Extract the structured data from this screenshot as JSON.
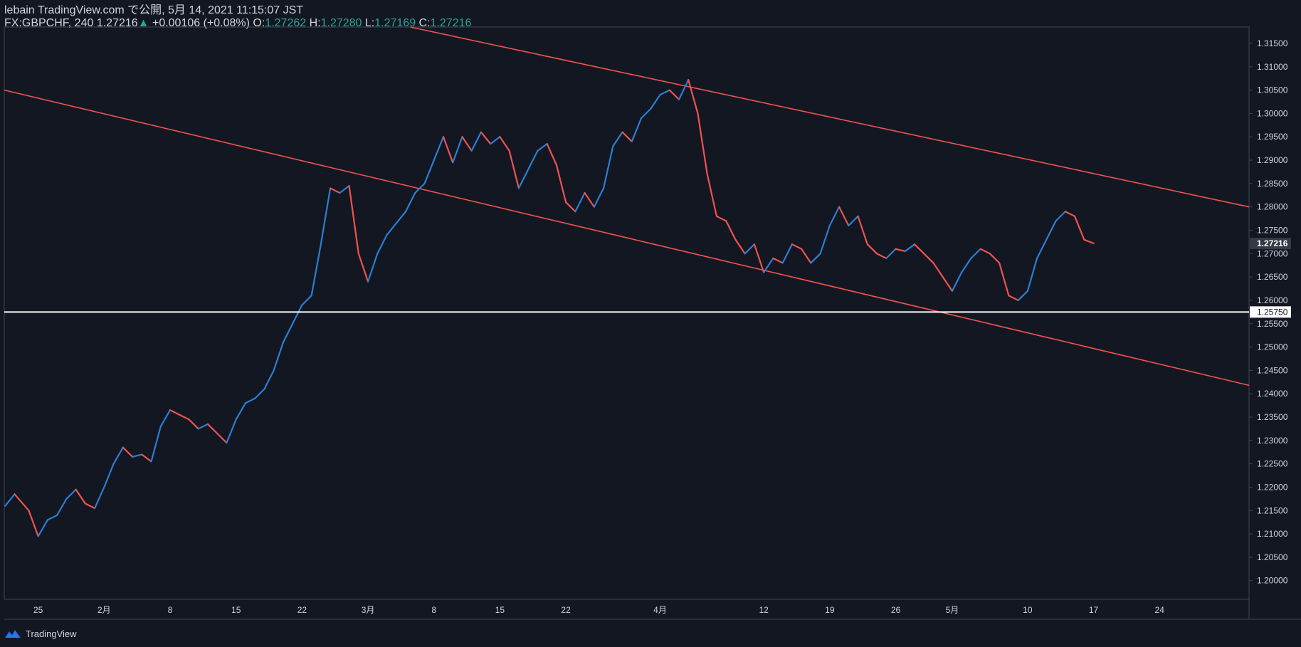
{
  "header": {
    "line1": "lebain TradingView.com で公開, 5月 14, 2021 11:15:07 JST",
    "symbol": "FX:GBPCHF, 240",
    "last": "1.27216",
    "change": "+0.00106 (+0.08%)",
    "o_label": "O:",
    "o_value": "1.27262",
    "h_label": "H:",
    "h_value": "1.27280",
    "l_label": "L:",
    "l_value": "1.27169",
    "c_label": "C:",
    "c_value": "1.27216"
  },
  "footer": {
    "brand": "TradingView",
    "logo_icon": "tradingview-logo-icon"
  },
  "chart_data": {
    "type": "line",
    "symbol": "FX:GBPCHF",
    "interval": "240",
    "y_ticks": [
      "1.31500",
      "1.31000",
      "1.30500",
      "1.30000",
      "1.29500",
      "1.29000",
      "1.28500",
      "1.28000",
      "1.27500",
      "1.27000",
      "1.26500",
      "1.26000",
      "1.25500",
      "1.25000",
      "1.24500",
      "1.24000",
      "1.23500",
      "1.23000",
      "1.22500",
      "1.22000",
      "1.21500",
      "1.21000",
      "1.20500",
      "1.20000"
    ],
    "ylim": [
      1.196,
      1.3185
    ],
    "x_ticks": [
      {
        "label": "25",
        "day": 0
      },
      {
        "label": "2月",
        "day": 7
      },
      {
        "label": "8",
        "day": 14
      },
      {
        "label": "15",
        "day": 21
      },
      {
        "label": "22",
        "day": 28
      },
      {
        "label": "3月",
        "day": 35
      },
      {
        "label": "8",
        "day": 42
      },
      {
        "label": "15",
        "day": 49
      },
      {
        "label": "22",
        "day": 56
      },
      {
        "label": "4月",
        "day": 66
      },
      {
        "label": "12",
        "day": 77
      },
      {
        "label": "19",
        "day": 84
      },
      {
        "label": "26",
        "day": 91
      },
      {
        "label": "5月",
        "day": 97
      },
      {
        "label": "10",
        "day": 105
      },
      {
        "label": "17",
        "day": 112
      },
      {
        "label": "24",
        "day": 119
      }
    ],
    "xlim": [
      -3.6,
      128.5
    ],
    "price_path": [
      [
        -3.5,
        1.216
      ],
      [
        -2.5,
        1.2185
      ],
      [
        -1,
        1.215
      ],
      [
        0,
        1.2095
      ],
      [
        1,
        1.213
      ],
      [
        2,
        1.214
      ],
      [
        3,
        1.2175
      ],
      [
        4,
        1.2195
      ],
      [
        5,
        1.2165
      ],
      [
        6,
        1.2155
      ],
      [
        7,
        1.22
      ],
      [
        8,
        1.225
      ],
      [
        9,
        1.2285
      ],
      [
        10,
        1.2265
      ],
      [
        11,
        1.227
      ],
      [
        12,
        1.2255
      ],
      [
        13,
        1.233
      ],
      [
        14,
        1.2365
      ],
      [
        15,
        1.2355
      ],
      [
        16,
        1.2345
      ],
      [
        17,
        1.2325
      ],
      [
        18,
        1.2335
      ],
      [
        19,
        1.2315
      ],
      [
        20,
        1.2295
      ],
      [
        21,
        1.2345
      ],
      [
        22,
        1.238
      ],
      [
        23,
        1.239
      ],
      [
        24,
        1.241
      ],
      [
        25,
        1.245
      ],
      [
        26,
        1.251
      ],
      [
        27,
        1.255
      ],
      [
        28,
        1.259
      ],
      [
        29,
        1.261
      ],
      [
        30,
        1.272
      ],
      [
        31,
        1.284
      ],
      [
        32,
        1.283
      ],
      [
        33,
        1.2845
      ],
      [
        34,
        1.27
      ],
      [
        35,
        1.264
      ],
      [
        36,
        1.27
      ],
      [
        37,
        1.274
      ],
      [
        38,
        1.2765
      ],
      [
        39,
        1.279
      ],
      [
        40,
        1.283
      ],
      [
        41,
        1.285
      ],
      [
        42,
        1.29
      ],
      [
        43,
        1.295
      ],
      [
        44,
        1.2895
      ],
      [
        45,
        1.295
      ],
      [
        46,
        1.292
      ],
      [
        47,
        1.296
      ],
      [
        48,
        1.2935
      ],
      [
        49,
        1.295
      ],
      [
        50,
        1.292
      ],
      [
        51,
        1.284
      ],
      [
        52,
        1.288
      ],
      [
        53,
        1.292
      ],
      [
        54,
        1.2935
      ],
      [
        55,
        1.289
      ],
      [
        56,
        1.281
      ],
      [
        57,
        1.279
      ],
      [
        58,
        1.283
      ],
      [
        59,
        1.28
      ],
      [
        60,
        1.284
      ],
      [
        61,
        1.293
      ],
      [
        62,
        1.296
      ],
      [
        63,
        1.294
      ],
      [
        64,
        1.299
      ],
      [
        65,
        1.301
      ],
      [
        66,
        1.304
      ],
      [
        67,
        1.305
      ],
      [
        68,
        1.303
      ],
      [
        69,
        1.3072
      ],
      [
        70,
        1.3
      ],
      [
        71,
        1.287
      ],
      [
        72,
        1.278
      ],
      [
        73,
        1.277
      ],
      [
        74,
        1.273
      ],
      [
        75,
        1.27
      ],
      [
        76,
        1.272
      ],
      [
        77,
        1.266
      ],
      [
        78,
        1.269
      ],
      [
        79,
        1.268
      ],
      [
        80,
        1.272
      ],
      [
        81,
        1.271
      ],
      [
        82,
        1.268
      ],
      [
        83,
        1.27
      ],
      [
        84,
        1.276
      ],
      [
        85,
        1.28
      ],
      [
        86,
        1.276
      ],
      [
        87,
        1.278
      ],
      [
        88,
        1.272
      ],
      [
        89,
        1.27
      ],
      [
        90,
        1.269
      ],
      [
        91,
        1.271
      ],
      [
        92,
        1.2705
      ],
      [
        93,
        1.272
      ],
      [
        94,
        1.27
      ],
      [
        95,
        1.268
      ],
      [
        96,
        1.265
      ],
      [
        97,
        1.262
      ],
      [
        98,
        1.266
      ],
      [
        99,
        1.269
      ],
      [
        100,
        1.271
      ],
      [
        101,
        1.27
      ],
      [
        102,
        1.268
      ],
      [
        103,
        1.261
      ],
      [
        104,
        1.26
      ],
      [
        105,
        1.262
      ],
      [
        106,
        1.269
      ],
      [
        107,
        1.273
      ],
      [
        108,
        1.277
      ],
      [
        109,
        1.279
      ],
      [
        110,
        1.278
      ],
      [
        111,
        1.273
      ],
      [
        112,
        1.2722
      ]
    ],
    "channel_upper": [
      [
        1.2865,
        51
      ],
      [
        1.295,
        45
      ]
    ],
    "channel_lower": [
      [
        1.3045,
        12
      ],
      [
        1.215,
        0
      ]
    ],
    "trendlines": [
      {
        "name": "channel-upper",
        "color": "#ef5350",
        "points": [
          [
            39.5,
            1.3185
          ],
          [
            128.5,
            1.28
          ]
        ]
      },
      {
        "name": "channel-lower",
        "color": "#ef5350",
        "points": [
          [
            -3.6,
            1.305
          ],
          [
            128.5,
            1.2418
          ]
        ]
      }
    ],
    "horizontal_line": {
      "value": 1.2575,
      "label": "1.25750",
      "color": "#ffffff"
    },
    "last_price_label": "1.27216",
    "colors": {
      "up": "#2a7fd4",
      "down": "#ef5350",
      "background": "#131722",
      "border": "#434651",
      "text": "#d1d4dc"
    },
    "grid": false
  }
}
